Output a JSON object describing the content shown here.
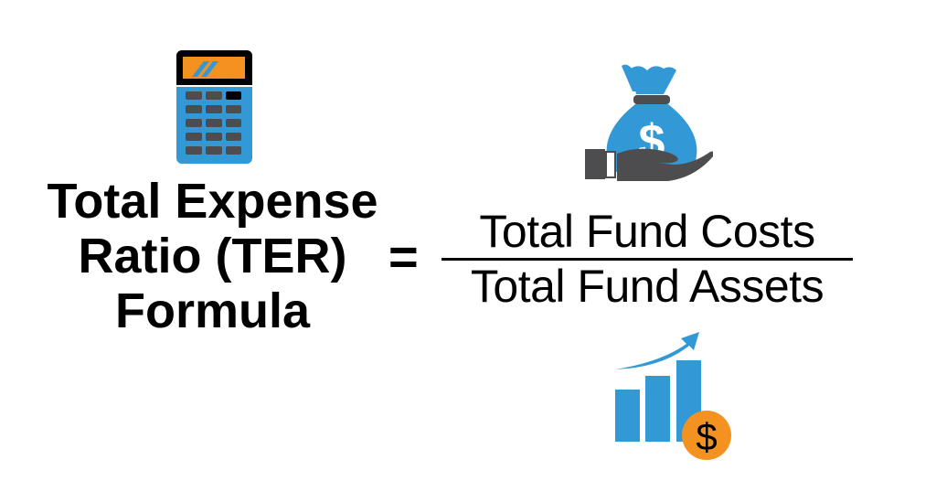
{
  "formula": {
    "lhs_lines": [
      "Total Expense",
      "Ratio (TER)",
      "Formula"
    ],
    "equals": "=",
    "numerator": "Total Fund Costs",
    "denominator": "Total Fund Assets"
  },
  "icons": [
    "calculator-icon",
    "money-bag-in-hand-icon",
    "growth-chart-dollar-icon"
  ],
  "colors": {
    "blue": "#3399d6",
    "orange": "#f39221",
    "dark_gray": "#4d4d4f",
    "black": "#000000"
  }
}
